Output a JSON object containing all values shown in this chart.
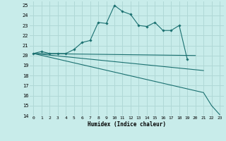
{
  "xlabel": "Humidex (Indice chaleur)",
  "ylabel": "",
  "bg_color": "#c8ecea",
  "grid_color": "#b0d8d6",
  "line_color": "#1a7070",
  "xlim": [
    -0.5,
    23.5
  ],
  "ylim": [
    14,
    25.4
  ],
  "xticks": [
    0,
    1,
    2,
    3,
    4,
    5,
    6,
    7,
    8,
    9,
    10,
    11,
    12,
    13,
    14,
    15,
    16,
    17,
    18,
    19,
    20,
    21,
    22,
    23
  ],
  "yticks": [
    14,
    15,
    16,
    17,
    18,
    19,
    20,
    21,
    22,
    23,
    24,
    25
  ],
  "series": [
    {
      "x": [
        0,
        1,
        2,
        3,
        4,
        5,
        6,
        7,
        8,
        9,
        10,
        11,
        12,
        13,
        14,
        15,
        16,
        17,
        18,
        19
      ],
      "y": [
        20.2,
        20.4,
        20.2,
        20.2,
        20.2,
        20.6,
        21.3,
        21.5,
        23.3,
        23.2,
        25.0,
        24.4,
        24.1,
        23.0,
        22.9,
        23.3,
        22.5,
        22.5,
        23.0,
        19.6
      ],
      "marker": true
    },
    {
      "x": [
        0,
        20
      ],
      "y": [
        20.2,
        20.0
      ],
      "marker": false
    },
    {
      "x": [
        0,
        21
      ],
      "y": [
        20.2,
        18.5
      ],
      "marker": false
    },
    {
      "x": [
        0,
        21,
        22,
        23
      ],
      "y": [
        20.2,
        16.3,
        15.0,
        14.1
      ],
      "marker": false
    }
  ]
}
